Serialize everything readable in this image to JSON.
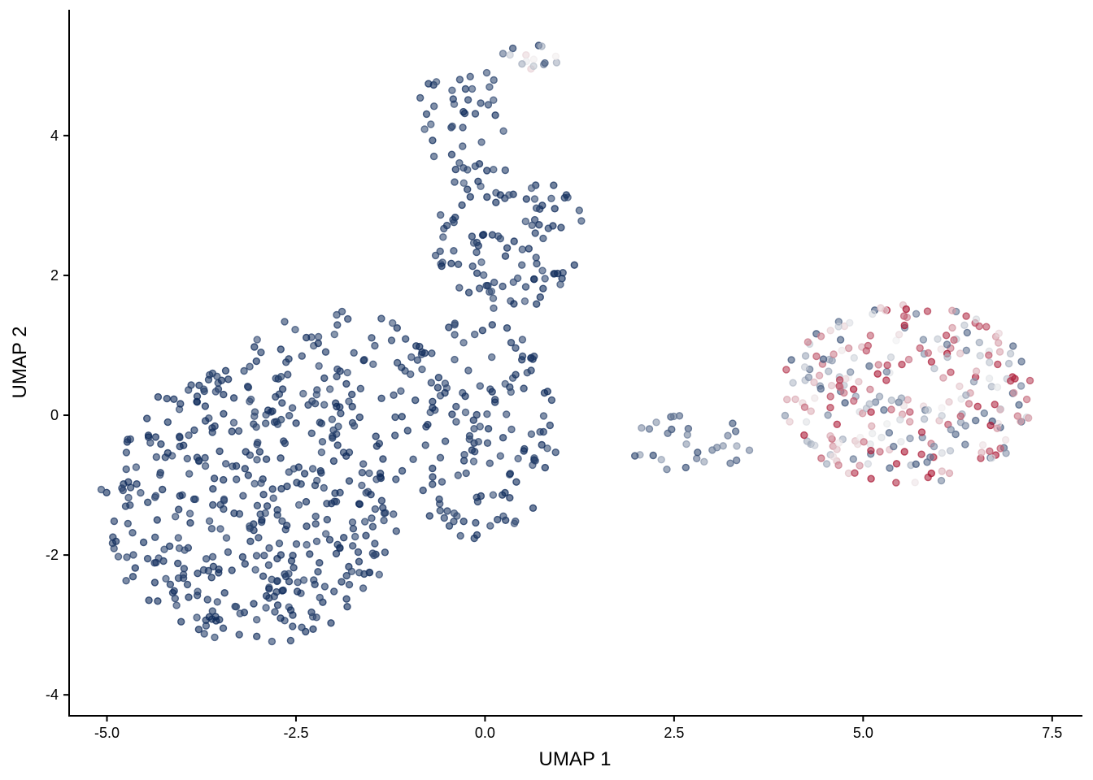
{
  "chart_data": {
    "type": "scatter",
    "title": "",
    "xlabel": "UMAP 1",
    "ylabel": "UMAP 2",
    "xlim": [
      -5.5,
      7.9
    ],
    "ylim": [
      -4.3,
      5.8
    ],
    "xticks": [
      -5.0,
      -2.5,
      0.0,
      2.5,
      5.0,
      7.5
    ],
    "xtick_labels": [
      "-5.0",
      "-2.5",
      "0.0",
      "2.5",
      "5.0",
      "7.5"
    ],
    "yticks": [
      -4,
      -2,
      0,
      2,
      4
    ],
    "ytick_labels": [
      "-4",
      "-2",
      "0",
      "2",
      "4"
    ],
    "grid": false,
    "legend": "none",
    "color_scale": {
      "low": "#0d2a5a",
      "mid": "#f2f2f2",
      "high": "#a8102e",
      "range": [
        0,
        1
      ]
    },
    "point_alpha": 0.6,
    "clusters": [
      {
        "cx": -3.1,
        "cy": -1.3,
        "rx": 2.0,
        "ry": 2.0,
        "n": 430,
        "value": 0.03,
        "spread": 0.06
      },
      {
        "cx": -0.1,
        "cy": -0.2,
        "rx": 1.1,
        "ry": 1.6,
        "n": 150,
        "value": 0.04,
        "spread": 0.06
      },
      {
        "cx": 0.3,
        "cy": 2.6,
        "rx": 1.0,
        "ry": 1.1,
        "n": 110,
        "value": 0.04,
        "spread": 0.08
      },
      {
        "cx": -0.3,
        "cy": 4.3,
        "rx": 0.6,
        "ry": 0.8,
        "n": 40,
        "value": 0.05,
        "spread": 0.06
      },
      {
        "cx": 0.6,
        "cy": 5.1,
        "rx": 0.4,
        "ry": 0.2,
        "n": 15,
        "value": 0.3,
        "spread": 0.35
      },
      {
        "cx": -2.0,
        "cy": 0.8,
        "rx": 1.2,
        "ry": 0.7,
        "n": 60,
        "value": 0.04,
        "spread": 0.06
      },
      {
        "cx": 2.7,
        "cy": -0.4,
        "rx": 0.9,
        "ry": 0.4,
        "n": 30,
        "value": 0.18,
        "spread": 0.12
      },
      {
        "cx": 5.6,
        "cy": 0.3,
        "rx": 1.7,
        "ry": 1.3,
        "n": 280,
        "value": 0.55,
        "spread": 0.45
      }
    ]
  }
}
